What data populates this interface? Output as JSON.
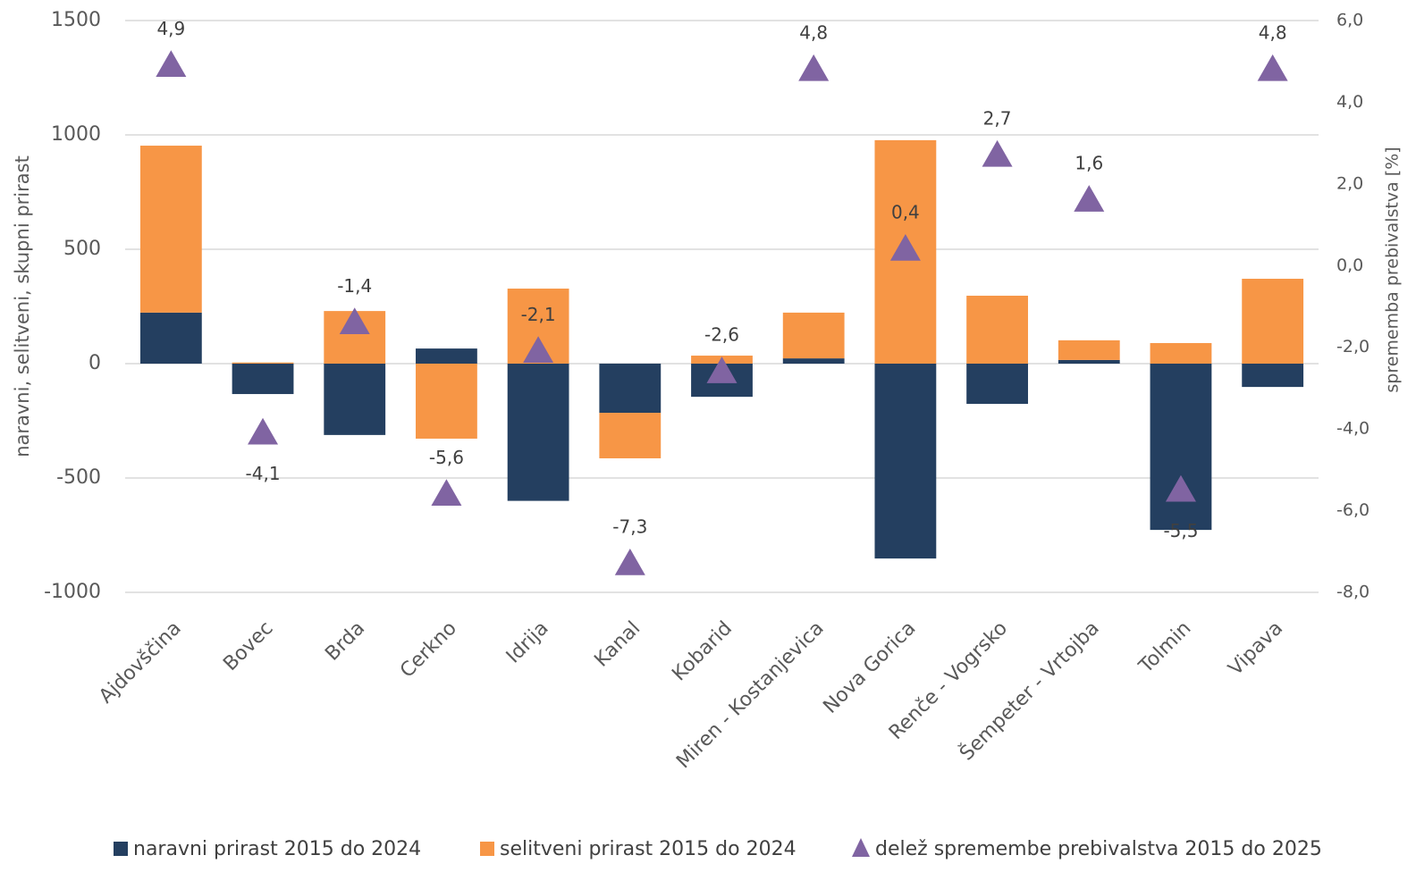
{
  "chart_data": {
    "type": "bar",
    "stacked": true,
    "categories": [
      "Ajdovščina",
      "Bovec",
      "Brda",
      "Cerkno",
      "Idrija",
      "Kanal",
      "Kobarid",
      "Miren - Kostanjevica",
      "Nova Gorica",
      "Renče - Vogrsko",
      "Šempeter - Vrtojba",
      "Tolmin",
      "Vipava"
    ],
    "series": [
      {
        "name": "naravni prirast 2015 do 2024",
        "color": "#243f60",
        "values": [
          223,
          -133,
          -312,
          66,
          -600,
          -215,
          -145,
          23,
          -852,
          -176,
          16,
          -727,
          -102
        ]
      },
      {
        "name": "selitveni prirast 2015 do 2024",
        "color": "#f79646",
        "values": [
          730,
          5,
          230,
          -328,
          328,
          -199,
          35,
          200,
          977,
          297,
          86,
          90,
          371
        ]
      },
      {
        "name": "delež spremembe prebivalstva 2015 do 2025",
        "color": "#8064a2",
        "axis": "y2",
        "marker": "triangle",
        "values": [
          4.9,
          -4.1,
          -1.4,
          -5.6,
          -2.1,
          -7.3,
          -2.6,
          4.8,
          0.4,
          2.7,
          1.6,
          -5.5,
          4.8
        ],
        "value_labels": [
          "4,9",
          "-4,1",
          "-1,4",
          "-5,6",
          "-2,1",
          "-7,3",
          "-2,6",
          "4,8",
          "0,4",
          "2,7",
          "1,6",
          "-5,5",
          "4,8"
        ]
      }
    ],
    "ylabel": "naravni, selitveni, skupni prirast",
    "y2label": "sprememba prebivalstva [%]",
    "ylim": [
      -1000,
      1500
    ],
    "yticks": [
      -1000,
      -500,
      0,
      500,
      1000,
      1500
    ],
    "y2lim": [
      -8,
      6
    ],
    "y2ticks": [
      {
        "value": -8,
        "label": "-8,0"
      },
      {
        "value": -6,
        "label": "-6,0"
      },
      {
        "value": -4,
        "label": "-4,0"
      },
      {
        "value": -2,
        "label": "-2,0"
      },
      {
        "value": 0,
        "label": "0,0"
      },
      {
        "value": 2,
        "label": "2,0"
      },
      {
        "value": 4,
        "label": "4,0"
      },
      {
        "value": 6,
        "label": "6,0"
      }
    ],
    "grid": true,
    "legend": "bottom"
  }
}
